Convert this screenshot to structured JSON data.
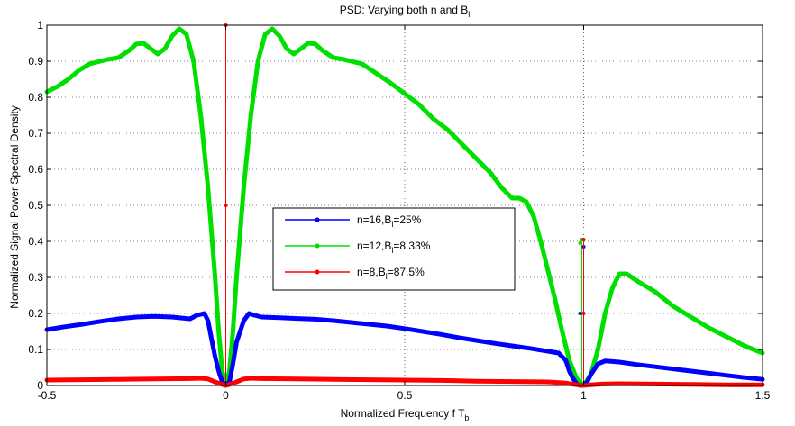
{
  "chart_data": {
    "type": "line",
    "title": "PSD: Varying both n and B",
    "title_sub": "l",
    "xlabel": "Normalized Frequency f T",
    "xlabel_sub": "b",
    "ylabel": "Normalized Signal Power Spectral Density",
    "xlim": [
      -0.5,
      1.5
    ],
    "ylim": [
      0,
      1
    ],
    "xticks": [
      "-0.5",
      "0",
      "0.5",
      "1",
      "1.5"
    ],
    "xtick_values": [
      -0.5,
      0,
      0.5,
      1,
      1.5
    ],
    "yticks": [
      "0",
      "0.1",
      "0.2",
      "0.3",
      "0.4",
      "0.5",
      "0.6",
      "0.7",
      "0.8",
      "0.9",
      "1"
    ],
    "ytick_values": [
      0,
      0.1,
      0.2,
      0.3,
      0.4,
      0.5,
      0.6,
      0.7,
      0.8,
      0.9,
      1.0
    ],
    "grid": true,
    "legend_position": "center",
    "series": [
      {
        "name": "n=16,B",
        "name_sub": "l",
        "name_suffix": "=25%",
        "color": "#0000ff",
        "points": [
          [
            -0.5,
            0.155
          ],
          [
            -0.45,
            0.163
          ],
          [
            -0.4,
            0.17
          ],
          [
            -0.35,
            0.178
          ],
          [
            -0.3,
            0.185
          ],
          [
            -0.25,
            0.19
          ],
          [
            -0.2,
            0.192
          ],
          [
            -0.15,
            0.19
          ],
          [
            -0.1,
            0.185
          ],
          [
            -0.08,
            0.195
          ],
          [
            -0.06,
            0.2
          ],
          [
            -0.05,
            0.18
          ],
          [
            -0.04,
            0.13
          ],
          [
            -0.03,
            0.08
          ],
          [
            -0.02,
            0.04
          ],
          [
            -0.01,
            0.01
          ],
          [
            0,
            0
          ],
          [
            0.01,
            0.01
          ],
          [
            0.02,
            0.06
          ],
          [
            0.03,
            0.12
          ],
          [
            0.05,
            0.18
          ],
          [
            0.065,
            0.2
          ],
          [
            0.08,
            0.195
          ],
          [
            0.1,
            0.19
          ],
          [
            0.15,
            0.188
          ],
          [
            0.2,
            0.186
          ],
          [
            0.25,
            0.184
          ],
          [
            0.3,
            0.18
          ],
          [
            0.35,
            0.175
          ],
          [
            0.4,
            0.17
          ],
          [
            0.45,
            0.165
          ],
          [
            0.5,
            0.158
          ],
          [
            0.55,
            0.15
          ],
          [
            0.6,
            0.142
          ],
          [
            0.65,
            0.133
          ],
          [
            0.7,
            0.125
          ],
          [
            0.75,
            0.117
          ],
          [
            0.8,
            0.11
          ],
          [
            0.85,
            0.103
          ],
          [
            0.9,
            0.095
          ],
          [
            0.93,
            0.09
          ],
          [
            0.95,
            0.07
          ],
          [
            0.96,
            0.04
          ],
          [
            0.97,
            0.02
          ],
          [
            0.98,
            0.005
          ],
          [
            0.99,
            0
          ],
          [
            1.0,
            0
          ],
          [
            1.01,
            0.01
          ],
          [
            1.02,
            0.03
          ],
          [
            1.04,
            0.06
          ],
          [
            1.06,
            0.068
          ],
          [
            1.1,
            0.065
          ],
          [
            1.15,
            0.058
          ],
          [
            1.2,
            0.052
          ],
          [
            1.25,
            0.046
          ],
          [
            1.3,
            0.04
          ],
          [
            1.35,
            0.034
          ],
          [
            1.4,
            0.028
          ],
          [
            1.45,
            0.022
          ],
          [
            1.5,
            0.017
          ]
        ],
        "spikes": [
          [
            1.0,
            0.385
          ],
          [
            0.99,
            0.2
          ]
        ]
      },
      {
        "name": "n=12,B",
        "name_sub": "l",
        "name_suffix": "=8.33%",
        "color": "#00e000",
        "points": [
          [
            -0.5,
            0.815
          ],
          [
            -0.47,
            0.83
          ],
          [
            -0.44,
            0.85
          ],
          [
            -0.41,
            0.875
          ],
          [
            -0.38,
            0.893
          ],
          [
            -0.35,
            0.9
          ],
          [
            -0.33,
            0.905
          ],
          [
            -0.3,
            0.91
          ],
          [
            -0.27,
            0.93
          ],
          [
            -0.25,
            0.948
          ],
          [
            -0.23,
            0.95
          ],
          [
            -0.21,
            0.935
          ],
          [
            -0.19,
            0.92
          ],
          [
            -0.17,
            0.935
          ],
          [
            -0.15,
            0.97
          ],
          [
            -0.13,
            0.99
          ],
          [
            -0.11,
            0.975
          ],
          [
            -0.09,
            0.9
          ],
          [
            -0.07,
            0.75
          ],
          [
            -0.05,
            0.55
          ],
          [
            -0.03,
            0.3
          ],
          [
            -0.02,
            0.15
          ],
          [
            -0.01,
            0.04
          ],
          [
            0,
            0
          ],
          [
            0.01,
            0.04
          ],
          [
            0.02,
            0.15
          ],
          [
            0.03,
            0.3
          ],
          [
            0.05,
            0.55
          ],
          [
            0.07,
            0.75
          ],
          [
            0.09,
            0.9
          ],
          [
            0.11,
            0.975
          ],
          [
            0.13,
            0.99
          ],
          [
            0.15,
            0.97
          ],
          [
            0.17,
            0.935
          ],
          [
            0.19,
            0.92
          ],
          [
            0.21,
            0.935
          ],
          [
            0.23,
            0.95
          ],
          [
            0.25,
            0.948
          ],
          [
            0.27,
            0.93
          ],
          [
            0.3,
            0.91
          ],
          [
            0.33,
            0.905
          ],
          [
            0.35,
            0.9
          ],
          [
            0.38,
            0.893
          ],
          [
            0.4,
            0.88
          ],
          [
            0.43,
            0.86
          ],
          [
            0.46,
            0.84
          ],
          [
            0.5,
            0.81
          ],
          [
            0.54,
            0.78
          ],
          [
            0.58,
            0.74
          ],
          [
            0.62,
            0.71
          ],
          [
            0.66,
            0.67
          ],
          [
            0.7,
            0.63
          ],
          [
            0.74,
            0.59
          ],
          [
            0.77,
            0.55
          ],
          [
            0.8,
            0.52
          ],
          [
            0.82,
            0.52
          ],
          [
            0.84,
            0.51
          ],
          [
            0.86,
            0.47
          ],
          [
            0.88,
            0.4
          ],
          [
            0.9,
            0.32
          ],
          [
            0.92,
            0.24
          ],
          [
            0.94,
            0.15
          ],
          [
            0.96,
            0.07
          ],
          [
            0.98,
            0.02
          ],
          [
            1.0,
            0
          ],
          [
            1.02,
            0.03
          ],
          [
            1.04,
            0.1
          ],
          [
            1.06,
            0.2
          ],
          [
            1.08,
            0.27
          ],
          [
            1.1,
            0.31
          ],
          [
            1.12,
            0.31
          ],
          [
            1.15,
            0.29
          ],
          [
            1.2,
            0.26
          ],
          [
            1.25,
            0.22
          ],
          [
            1.3,
            0.19
          ],
          [
            1.35,
            0.16
          ],
          [
            1.4,
            0.135
          ],
          [
            1.45,
            0.11
          ],
          [
            1.5,
            0.09
          ]
        ],
        "spikes": [
          [
            0.995,
            0.405
          ],
          [
            0.99,
            0.395
          ]
        ]
      },
      {
        "name": "n=8,B",
        "name_sub": "l",
        "name_suffix": "=87.5%",
        "color": "#ff0000",
        "points": [
          [
            -0.5,
            0.015
          ],
          [
            -0.4,
            0.016
          ],
          [
            -0.3,
            0.017
          ],
          [
            -0.2,
            0.018
          ],
          [
            -0.1,
            0.019
          ],
          [
            -0.07,
            0.02
          ],
          [
            -0.05,
            0.018
          ],
          [
            -0.03,
            0.01
          ],
          [
            -0.01,
            0.003
          ],
          [
            0,
            0
          ],
          [
            0.01,
            0.003
          ],
          [
            0.03,
            0.01
          ],
          [
            0.05,
            0.018
          ],
          [
            0.07,
            0.02
          ],
          [
            0.1,
            0.019
          ],
          [
            0.2,
            0.018
          ],
          [
            0.3,
            0.017
          ],
          [
            0.4,
            0.016
          ],
          [
            0.5,
            0.015
          ],
          [
            0.6,
            0.014
          ],
          [
            0.7,
            0.012
          ],
          [
            0.8,
            0.011
          ],
          [
            0.9,
            0.01
          ],
          [
            0.95,
            0.007
          ],
          [
            0.98,
            0.002
          ],
          [
            1.0,
            0
          ],
          [
            1.02,
            0.002
          ],
          [
            1.05,
            0.004
          ],
          [
            1.1,
            0.005
          ],
          [
            1.2,
            0.004
          ],
          [
            1.3,
            0.003
          ],
          [
            1.4,
            0.002
          ],
          [
            1.5,
            0.002
          ]
        ],
        "spikes": [
          [
            0,
            1.0
          ],
          [
            0,
            0.5
          ],
          [
            1.0,
            0.405
          ],
          [
            1.0,
            0.2
          ]
        ]
      }
    ]
  }
}
